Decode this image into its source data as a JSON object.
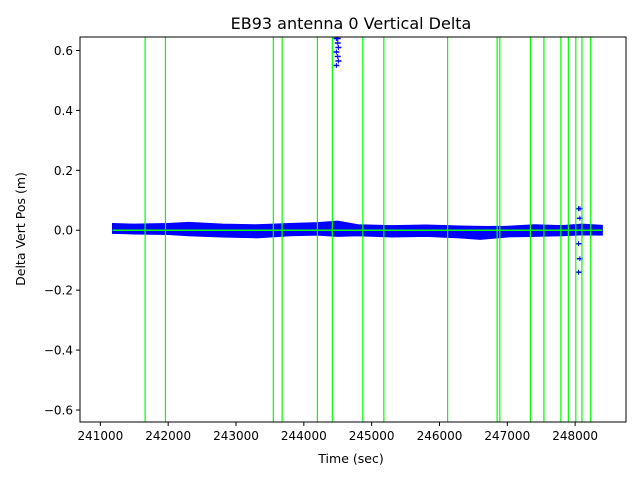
{
  "chart_data": {
    "type": "scatter",
    "title": "EB93 antenna 0 Vertical Delta",
    "xlabel": "Time (sec)",
    "ylabel": "Delta Vert Pos (m)",
    "xlim": [
      240700,
      248750
    ],
    "ylim": [
      -0.64,
      0.645
    ],
    "x_ticks": [
      "241000",
      "242000",
      "243000",
      "244000",
      "245000",
      "246000",
      "247000",
      "248000"
    ],
    "x_tick_values": [
      241000,
      242000,
      243000,
      244000,
      245000,
      246000,
      247000,
      248000
    ],
    "y_ticks": [
      "0.6",
      "0.4",
      "0.2",
      "0.0",
      "−0.2",
      "−0.4",
      "−0.6"
    ],
    "y_tick_values": [
      0.6,
      0.4,
      0.2,
      0.0,
      -0.2,
      -0.4,
      -0.6
    ],
    "grid": false,
    "colors": {
      "data": "#0000ff",
      "markers": "#00ff00",
      "axes": "#000000"
    },
    "series": [
      {
        "style": "errorbar-band",
        "color": "#0000ff",
        "x_range": [
          241180,
          248400
        ],
        "upper_envelope": [
          [
            241180,
            0.022
          ],
          [
            241500,
            0.02
          ],
          [
            242000,
            0.022
          ],
          [
            242300,
            0.026
          ],
          [
            242800,
            0.02
          ],
          [
            243300,
            0.018
          ],
          [
            243800,
            0.022
          ],
          [
            244200,
            0.025
          ],
          [
            244500,
            0.03
          ],
          [
            244800,
            0.018
          ],
          [
            245300,
            0.015
          ],
          [
            245800,
            0.017
          ],
          [
            246300,
            0.014
          ],
          [
            246700,
            0.012
          ],
          [
            247000,
            0.013
          ],
          [
            247400,
            0.018
          ],
          [
            247800,
            0.015
          ],
          [
            248100,
            0.02
          ],
          [
            248400,
            0.016
          ]
        ],
        "lower_envelope": [
          [
            241180,
            -0.01
          ],
          [
            241500,
            -0.012
          ],
          [
            242000,
            -0.014
          ],
          [
            242300,
            -0.018
          ],
          [
            242800,
            -0.022
          ],
          [
            243300,
            -0.025
          ],
          [
            243800,
            -0.018
          ],
          [
            244200,
            -0.016
          ],
          [
            244500,
            -0.02
          ],
          [
            244800,
            -0.018
          ],
          [
            245300,
            -0.022
          ],
          [
            245800,
            -0.02
          ],
          [
            246300,
            -0.025
          ],
          [
            246600,
            -0.03
          ],
          [
            247000,
            -0.022
          ],
          [
            247400,
            -0.02
          ],
          [
            247800,
            -0.018
          ],
          [
            248100,
            -0.015
          ],
          [
            248400,
            -0.016
          ]
        ]
      },
      {
        "style": "outlier-points",
        "color": "#0000ff",
        "x": [
          244480,
          244500,
          244510,
          244480,
          244500,
          244510,
          244480,
          244500,
          248050,
          248070,
          248050,
          248070,
          248050,
          248070
        ],
        "y": [
          0.64,
          0.625,
          0.61,
          0.595,
          0.58,
          0.565,
          0.55,
          0.64,
          0.072,
          0.04,
          -0.045,
          -0.095,
          -0.14,
          0.072
        ]
      }
    ],
    "centerline": {
      "color": "#00ff00",
      "y": 0.0,
      "x_range": [
        241180,
        248400
      ]
    },
    "vertical_markers": {
      "color": "#00ff00",
      "x": [
        241660,
        241960,
        243550,
        243680,
        244200,
        244420,
        244870,
        245180,
        246120,
        246850,
        246890,
        247340,
        247540,
        247790,
        247900,
        248010,
        248100,
        248230
      ]
    }
  }
}
